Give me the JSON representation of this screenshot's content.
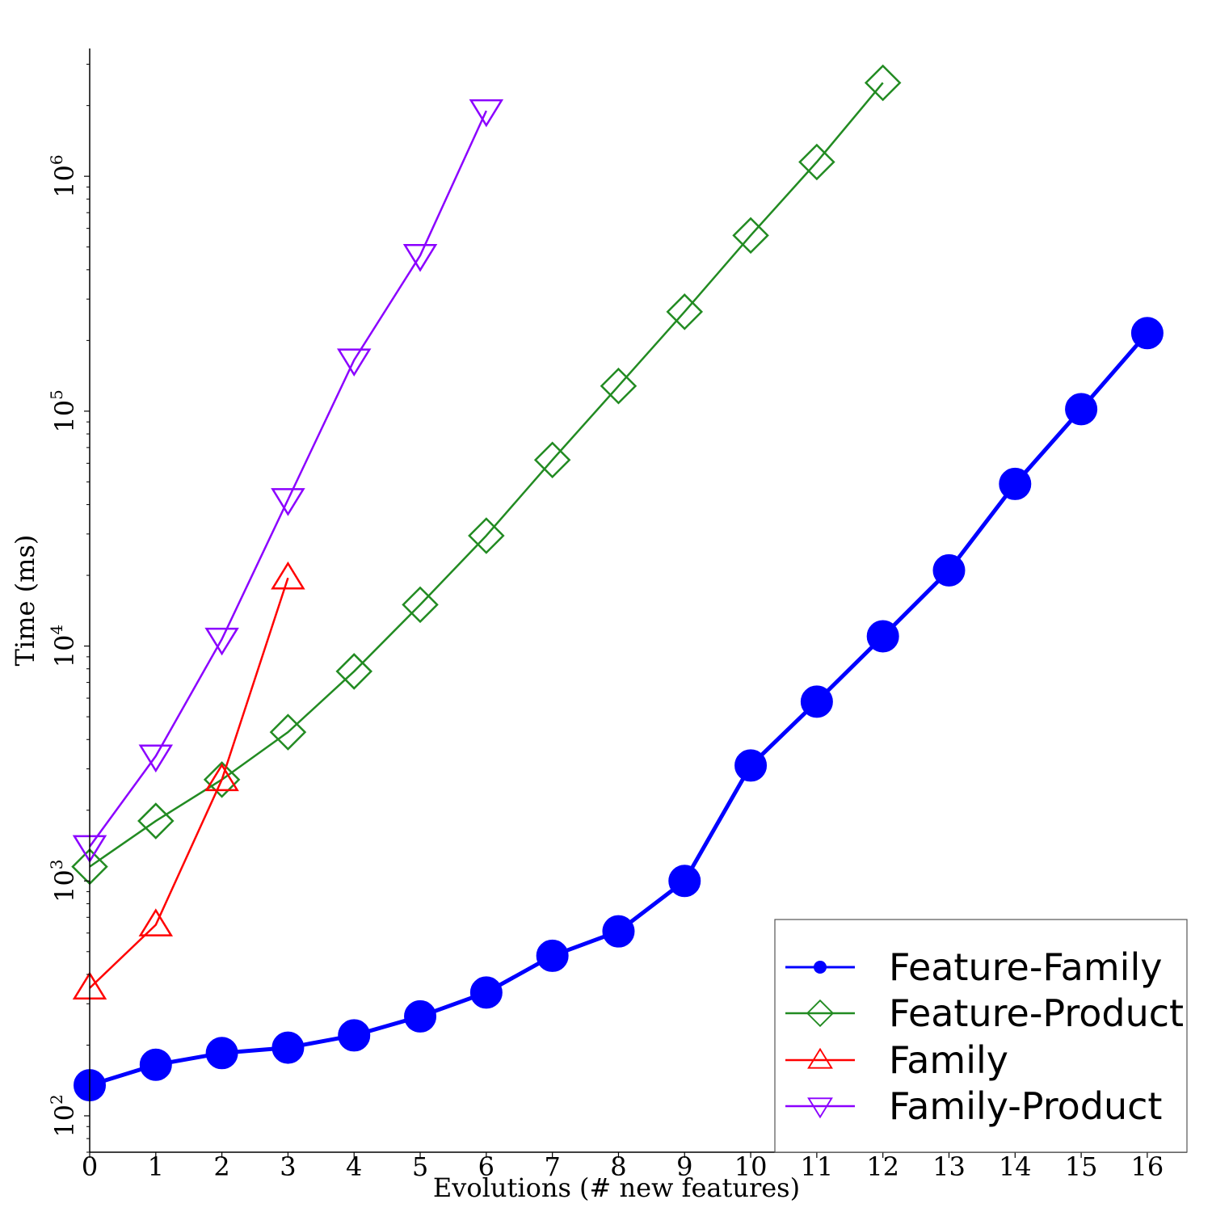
{
  "chart_data": {
    "type": "line",
    "title": "",
    "xlabel": "Evolutions (# new features)",
    "ylabel": "Time (ms)",
    "yscale": "log",
    "xlim": [
      0,
      16.6
    ],
    "ylim": [
      70,
      3500000
    ],
    "x_ticks": [
      0,
      1,
      2,
      3,
      4,
      5,
      6,
      7,
      8,
      9,
      10,
      11,
      12,
      13,
      14,
      15,
      16
    ],
    "y_ticks": [
      {
        "value": 100,
        "base": "10",
        "exp": "2"
      },
      {
        "value": 1000,
        "base": "10",
        "exp": "3"
      },
      {
        "value": 10000,
        "base": "10",
        "exp": "4"
      },
      {
        "value": 100000,
        "base": "10",
        "exp": "5"
      },
      {
        "value": 1000000,
        "base": "10",
        "exp": "6"
      }
    ],
    "legend_position": "bottom-right",
    "series": [
      {
        "name": "Feature-Family",
        "color": "#0000ff",
        "marker": "circle",
        "x": [
          0,
          1,
          2,
          3,
          4,
          5,
          6,
          7,
          8,
          9,
          10,
          11,
          12,
          13,
          14,
          15,
          16
        ],
        "values": [
          135,
          165,
          185,
          195,
          220,
          265,
          335,
          480,
          610,
          1000,
          3100,
          5800,
          11000,
          21000,
          49000,
          102000,
          215000
        ]
      },
      {
        "name": "Feature-Product",
        "color": "#228b22",
        "marker": "diamond",
        "x": [
          0,
          1,
          2,
          3,
          4,
          5,
          6,
          7,
          8,
          9,
          10,
          11,
          12
        ],
        "values": [
          1150,
          1800,
          2700,
          4300,
          7800,
          15000,
          29500,
          62000,
          128000,
          265000,
          560000,
          1150000,
          2500000
        ]
      },
      {
        "name": "Family",
        "color": "#ff0000",
        "marker": "triangle-up",
        "x": [
          0,
          1,
          2,
          3
        ],
        "values": [
          350,
          650,
          2700,
          19500
        ]
      },
      {
        "name": "Family-Product",
        "color": "#8b00ff",
        "marker": "triangle-down",
        "x": [
          0,
          1,
          2,
          3,
          4,
          5,
          6
        ],
        "values": [
          1400,
          3400,
          10700,
          42000,
          165000,
          460000,
          1900000
        ]
      }
    ]
  }
}
